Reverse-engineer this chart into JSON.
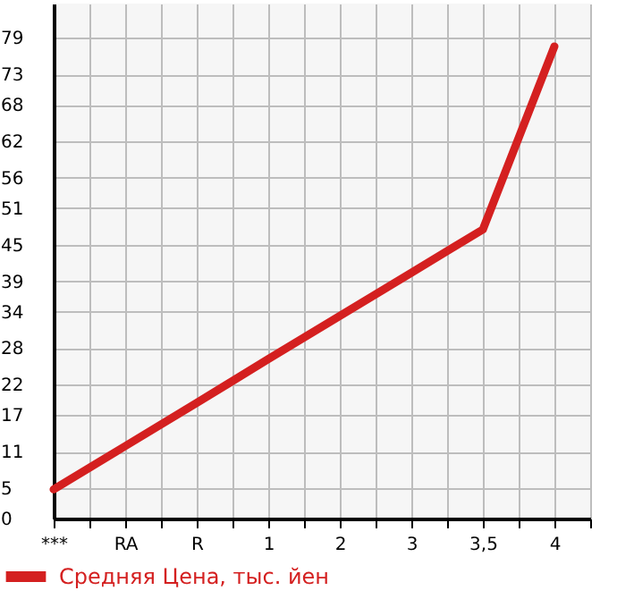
{
  "chart_data": {
    "type": "line",
    "categories": [
      "***",
      "RA",
      "R",
      "1",
      "2",
      "3",
      "3,5",
      "4"
    ],
    "series": [
      {
        "name": "Средняя Цена, тыс. йен",
        "color": "#d42020",
        "values": [
          4.8,
          11.9,
          19.0,
          26.2,
          33.3,
          40.4,
          47.5,
          77.6
        ]
      }
    ],
    "ylim": [
      0,
      84.64
    ],
    "yticks": [
      0,
      5,
      11,
      17,
      22,
      28,
      34,
      39,
      45,
      51,
      56,
      62,
      68,
      73,
      79
    ],
    "grid": true,
    "legend": "bottom left",
    "marker": "none",
    "line_style": "solid"
  }
}
